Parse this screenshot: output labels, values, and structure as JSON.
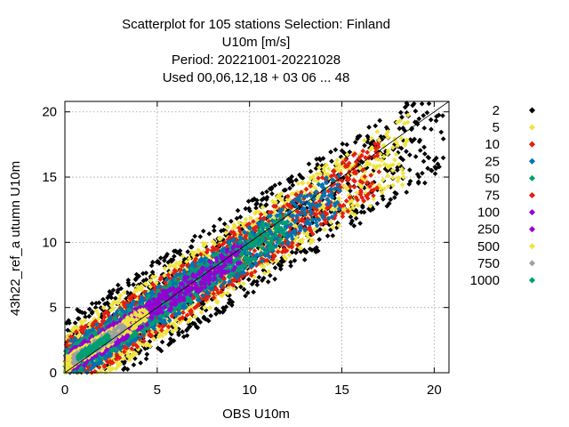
{
  "chart_data": {
    "type": "scatter",
    "title_lines": [
      "Scatterplot for  105 stations Selection: Finland",
      "U10m [m/s]",
      "Period: 20221001-20221028",
      "Used  00,06,12,18  + 03 06 ... 48"
    ],
    "xlabel": "OBS U10m",
    "ylabel": "43h22_ref_a utumn U10m",
    "xlim": [
      0,
      20.8
    ],
    "ylim": [
      0,
      20.8
    ],
    "x_ticks": [
      "0",
      "5",
      "10",
      "15",
      "20"
    ],
    "y_ticks": [
      "0",
      "5",
      "10",
      "15",
      "20"
    ],
    "grid": true,
    "diagonal_line": true,
    "legend_position": "right",
    "legend": [
      {
        "label": "2",
        "color": "#000000"
      },
      {
        "label": "5",
        "color": "#f0e442"
      },
      {
        "label": "10",
        "color": "#e51e10"
      },
      {
        "label": "25",
        "color": "#0072b2"
      },
      {
        "label": "50",
        "color": "#009e73"
      },
      {
        "label": "75",
        "color": "#e51e10"
      },
      {
        "label": "100",
        "color": "#9400d3"
      },
      {
        "label": "250",
        "color": "#9400d3"
      },
      {
        "label": "500",
        "color": "#f0e442"
      },
      {
        "label": "750",
        "color": "#a0a0a0"
      },
      {
        "label": "1000",
        "color": "#009e73"
      }
    ],
    "density_bands": [
      {
        "count_class": "2",
        "color": "#000000",
        "obs_range": [
          0,
          20.5
        ],
        "model_spread": 3.6
      },
      {
        "count_class": "5",
        "color": "#f0e442",
        "obs_range": [
          0,
          18.5
        ],
        "model_spread": 2.7
      },
      {
        "count_class": "10",
        "color": "#e51e10",
        "obs_range": [
          0,
          17.0
        ],
        "model_spread": 2.1
      },
      {
        "count_class": "25",
        "color": "#0072b2",
        "obs_range": [
          0,
          15.0
        ],
        "model_spread": 1.6
      },
      {
        "count_class": "50",
        "color": "#009e73",
        "obs_range": [
          0,
          12.0
        ],
        "model_spread": 1.2
      },
      {
        "count_class": "100",
        "color": "#9400d3",
        "obs_range": [
          0,
          9.5
        ],
        "model_spread": 0.9
      },
      {
        "count_class": "500",
        "color": "#f0e442",
        "obs_range": [
          0,
          4.5
        ],
        "model_spread": 0.6
      },
      {
        "count_class": "750",
        "color": "#a0a0a0",
        "obs_range": [
          0.5,
          3.2
        ],
        "model_spread": 0.4
      },
      {
        "count_class": "1000",
        "color": "#009e73",
        "obs_range": [
          0.8,
          2.4
        ],
        "model_spread": 0.25
      }
    ]
  }
}
